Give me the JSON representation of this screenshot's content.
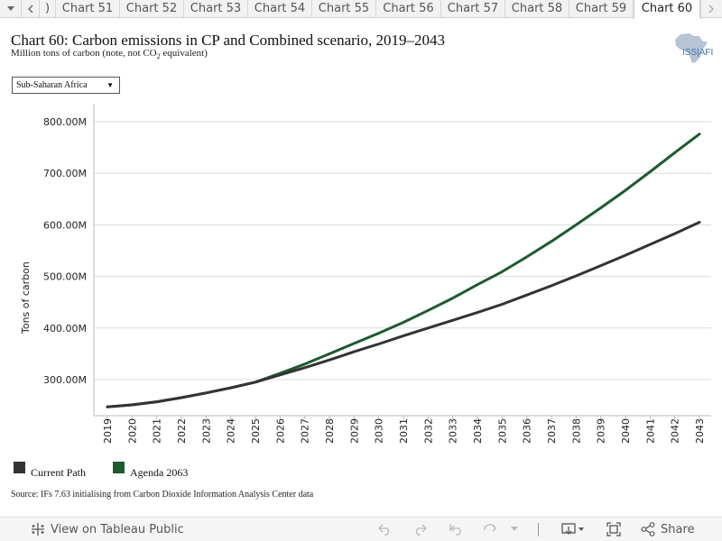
{
  "tabs": {
    "prev_icon": "chevron-left-icon",
    "next_icon": "chevron-right-icon",
    "menu_icon": "caret-down-icon",
    "partial_label": ")",
    "items": [
      "Chart 51",
      "Chart 52",
      "Chart 53",
      "Chart 54",
      "Chart 55",
      "Chart 56",
      "Chart 57",
      "Chart 58",
      "Chart 59",
      "Chart 60"
    ],
    "active_index": 9
  },
  "header": {
    "title": "Chart 60: Carbon emissions in CP and Combined scenario, 2019–2043",
    "subtitle_pre": "Million tons of carbon (note, not CO",
    "subtitle_sub": "2",
    "subtitle_post": " equivalent)",
    "logo_text": "ISS|AFI",
    "logo_icon": "africa-map-icon"
  },
  "filter": {
    "selected": "Sub-Saharan Africa",
    "icon": "caret-down-icon"
  },
  "chart_data": {
    "type": "line",
    "ylabel": "Tons of carbon",
    "ylim": [
      230,
      835
    ],
    "yticks": [
      300,
      400,
      500,
      600,
      700,
      800
    ],
    "ytick_labels": [
      "300.00M",
      "400.00M",
      "500.00M",
      "600.00M",
      "700.00M",
      "800.00M"
    ],
    "x": [
      2019,
      2020,
      2021,
      2022,
      2023,
      2024,
      2025,
      2026,
      2027,
      2028,
      2029,
      2030,
      2031,
      2032,
      2033,
      2034,
      2035,
      2036,
      2037,
      2038,
      2039,
      2040,
      2041,
      2042,
      2043
    ],
    "grid": "horizontal",
    "series": [
      {
        "name": "Current Path",
        "color": "#333333",
        "values": [
          247,
          251,
          257,
          265,
          274,
          284,
          295,
          309,
          323,
          338,
          354,
          369,
          385,
          400,
          415,
          430,
          446,
          464,
          482,
          501,
          521,
          541,
          562,
          583,
          605
        ]
      },
      {
        "name": "Agenda 2063",
        "color": "#1a5c2e",
        "values": [
          247,
          251,
          257,
          265,
          274,
          284,
          295,
          312,
          330,
          350,
          370,
          390,
          411,
          434,
          458,
          484,
          509,
          538,
          568,
          600,
          633,
          667,
          703,
          740,
          776
        ]
      }
    ]
  },
  "legend": [
    {
      "label": "Current Path",
      "color": "#333333"
    },
    {
      "label": "Agenda 2063",
      "color": "#1a5c2e"
    }
  ],
  "source": "Source: IFs 7.63 initialising from Carbon Dioxide Information Analysis Center data",
  "toolbar": {
    "view_label": "View on Tableau Public",
    "share_label": "Share",
    "icons": [
      "tableau-icon",
      "undo-icon",
      "redo-icon",
      "revert-icon",
      "refresh-icon",
      "pause-icon",
      "download-icon",
      "fullscreen-icon",
      "share-icon"
    ]
  }
}
